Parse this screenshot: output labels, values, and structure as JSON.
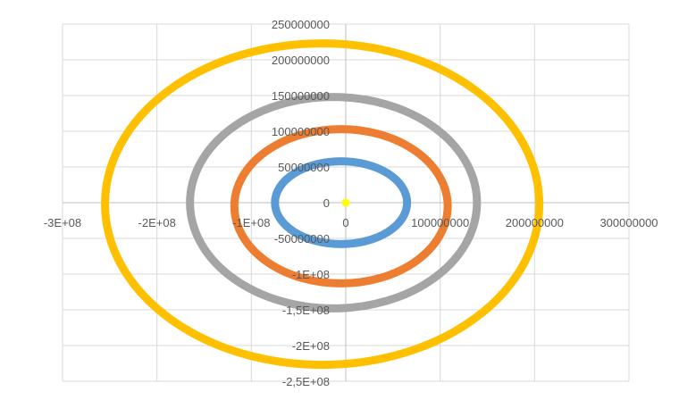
{
  "chart_data": {
    "type": "scatter",
    "title": "",
    "xlabel": "",
    "ylabel": "",
    "xlim": [
      -300000000,
      300000000
    ],
    "ylim": [
      -250000000,
      250000000
    ],
    "grid": true,
    "legend": "none",
    "x_ticks": [
      {
        "value": -300000000,
        "label": "-3E+08"
      },
      {
        "value": -200000000,
        "label": "-2E+08"
      },
      {
        "value": -100000000,
        "label": "-1E+08"
      },
      {
        "value": 0,
        "label": "0"
      },
      {
        "value": 100000000,
        "label": "100000000"
      },
      {
        "value": 200000000,
        "label": "200000000"
      },
      {
        "value": 300000000,
        "label": "300000000"
      }
    ],
    "y_ticks": [
      {
        "value": 250000000,
        "label": "250000000"
      },
      {
        "value": 200000000,
        "label": "200000000"
      },
      {
        "value": 150000000,
        "label": "150000000"
      },
      {
        "value": 100000000,
        "label": "100000000"
      },
      {
        "value": 50000000,
        "label": "50000000"
      },
      {
        "value": 0,
        "label": "0"
      },
      {
        "value": -50000000,
        "label": "-50000000"
      },
      {
        "value": -100000000,
        "label": "-1E+08"
      },
      {
        "value": -150000000,
        "label": "-1,5E+08"
      },
      {
        "value": -200000000,
        "label": "-2E+08"
      },
      {
        "value": -250000000,
        "label": "-2,5E+08"
      }
    ],
    "series": [
      {
        "color": "#5b9bd5",
        "shape": "ellipse",
        "center": [
          -5000000,
          0
        ],
        "radius_x": 70000000,
        "radius_y": 58000000
      },
      {
        "color": "#ed7d31",
        "shape": "ellipse",
        "center": [
          -5000000,
          -5000000
        ],
        "radius_x": 113000000,
        "radius_y": 108000000
      },
      {
        "color": "#a5a5a5",
        "shape": "ellipse",
        "center": [
          -13000000,
          0
        ],
        "radius_x": 152000000,
        "radius_y": 148000000
      },
      {
        "color": "#ffc000",
        "shape": "ellipse",
        "center": [
          -25000000,
          -2000000
        ],
        "radius_x": 230000000,
        "radius_y": 225000000
      },
      {
        "color": "#ffff00",
        "shape": "point",
        "center": [
          0,
          0
        ]
      }
    ]
  }
}
